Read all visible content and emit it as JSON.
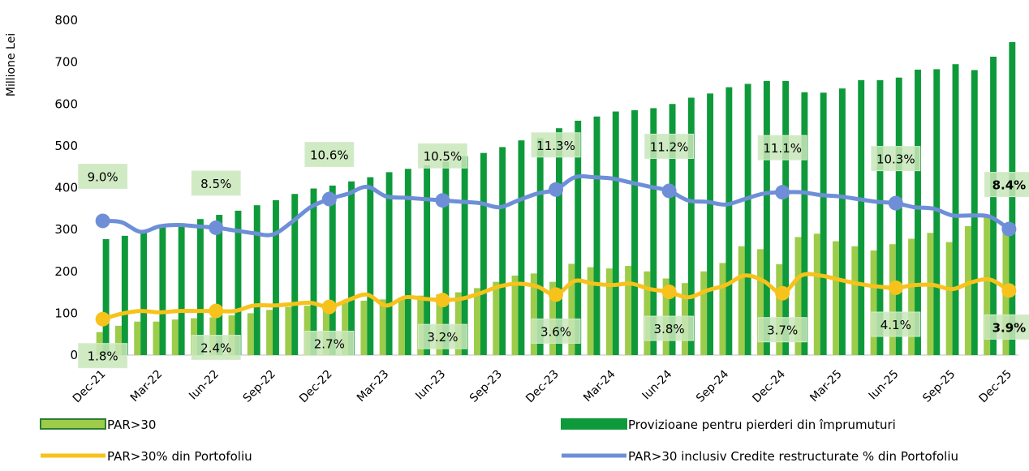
{
  "chart_data": {
    "type": "combo",
    "y_label": "Millione Lei",
    "categories": [
      "Dec-21",
      null,
      null,
      "Mar-22",
      null,
      null,
      "Iun-22",
      null,
      null,
      "Sep-22",
      null,
      null,
      "Dec-22",
      null,
      null,
      "Mar-23",
      null,
      null,
      "Iun-23",
      null,
      null,
      "Sep-23",
      null,
      null,
      "Dec-23",
      null,
      null,
      "Mar-24",
      null,
      null,
      "Iun-24",
      null,
      null,
      "Sep-24",
      null,
      null,
      "Dec-24",
      null,
      null,
      "Mar-25",
      null,
      null,
      "Iun-25",
      null,
      null,
      "Sep-25",
      null,
      null,
      "Dec-25"
    ],
    "ylim": [
      0,
      800
    ],
    "yticks": [
      0,
      100,
      200,
      300,
      400,
      500,
      600,
      700,
      800
    ],
    "y2lim": [
      -0.83,
      23.7
    ],
    "series": [
      {
        "name": "PAR>30",
        "kind": "bar",
        "color": "#9ccc4a",
        "values": [
          55,
          70,
          80,
          80,
          85,
          88,
          90,
          95,
          100,
          108,
          115,
          118,
          120,
          125,
          130,
          133,
          138,
          142,
          145,
          150,
          160,
          175,
          190,
          195,
          175,
          218,
          210,
          207,
          213,
          200,
          183,
          172,
          200,
          220,
          260,
          253,
          217,
          282,
          290,
          272,
          260,
          250,
          265,
          278,
          292,
          270,
          308,
          330,
          300
        ]
      },
      {
        "name": "Provizioane pentru pierderi din împrumuturi",
        "kind": "bar",
        "color": "#0e9a3a",
        "values": [
          277,
          285,
          295,
          305,
          315,
          325,
          335,
          345,
          358,
          370,
          385,
          398,
          405,
          415,
          425,
          437,
          445,
          453,
          462,
          475,
          483,
          497,
          513,
          518,
          542,
          560,
          570,
          582,
          585,
          590,
          600,
          615,
          625,
          640,
          648,
          655,
          655,
          628,
          627,
          637,
          657,
          657,
          663,
          682,
          683,
          695,
          681,
          713,
          748
        ]
      },
      {
        "name": "PAR>30% din Portofoliu",
        "kind": "line",
        "axis": "y2",
        "color": "#f7c21b",
        "values": [
          1.8,
          2.2,
          2.4,
          2.3,
          2.4,
          2.4,
          2.4,
          2.4,
          2.8,
          2.8,
          2.9,
          3.0,
          2.7,
          3.2,
          3.6,
          2.8,
          3.4,
          3.3,
          3.2,
          3.3,
          3.7,
          4.2,
          4.4,
          4.2,
          3.6,
          4.6,
          4.4,
          4.3,
          4.4,
          4.0,
          3.8,
          3.4,
          3.9,
          4.3,
          5.0,
          4.6,
          3.7,
          5.0,
          5.0,
          4.7,
          4.4,
          4.2,
          4.1,
          4.3,
          4.3,
          4.0,
          4.5,
          4.7,
          3.9
        ],
        "value_labels": [
          "1.8%",
          null,
          null,
          null,
          null,
          null,
          "2.4%",
          null,
          null,
          null,
          null,
          null,
          "2.7%",
          null,
          null,
          null,
          null,
          null,
          "3.2%",
          null,
          null,
          null,
          null,
          null,
          "3.6%",
          null,
          null,
          null,
          null,
          null,
          "3.8%",
          null,
          null,
          null,
          null,
          null,
          "3.7%",
          null,
          null,
          null,
          null,
          null,
          "4.1%",
          null,
          null,
          null,
          null,
          null,
          "3.9%"
        ]
      },
      {
        "name": "PAR>30 inclusiv Credite restructurate % din Portofoliu",
        "kind": "line",
        "axis": "y2",
        "color": "#6e8fd8",
        "values": [
          9.0,
          8.9,
          8.2,
          8.6,
          8.7,
          8.6,
          8.5,
          8.3,
          8.1,
          8.0,
          8.9,
          10.0,
          10.6,
          11.0,
          11.5,
          10.8,
          10.7,
          10.6,
          10.5,
          10.4,
          10.3,
          10.0,
          10.5,
          11.0,
          11.3,
          12.2,
          12.2,
          12.1,
          11.8,
          11.5,
          11.2,
          10.5,
          10.4,
          10.2,
          10.6,
          11.0,
          11.1,
          11.1,
          10.9,
          10.8,
          10.6,
          10.4,
          10.3,
          10.0,
          9.9,
          9.4,
          9.4,
          9.3,
          8.4
        ],
        "value_labels": [
          "9.0%",
          null,
          null,
          null,
          null,
          null,
          "8.5%",
          null,
          null,
          null,
          null,
          null,
          "10.6%",
          null,
          null,
          null,
          null,
          null,
          "10.5%",
          null,
          null,
          null,
          null,
          null,
          "11.3%",
          null,
          null,
          null,
          null,
          null,
          "11.2%",
          null,
          null,
          null,
          null,
          null,
          "11.1%",
          null,
          null,
          null,
          null,
          null,
          "10.3%",
          null,
          null,
          null,
          null,
          null,
          "8.4%"
        ]
      }
    ]
  }
}
